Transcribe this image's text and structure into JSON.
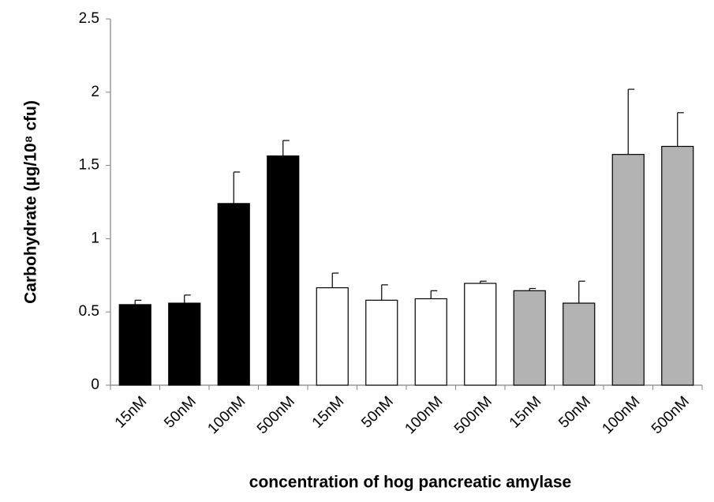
{
  "chart_data": {
    "type": "bar",
    "x_label": "concentration of hog pancreatic amylase",
    "y_label": "Carbohydrate (µg/10⁸ cfu)",
    "categories": [
      "15nM",
      "50nM",
      "100nM",
      "500nM",
      "15nM",
      "50nM",
      "100nM",
      "500nM",
      "15nM",
      "50nM",
      "100nM",
      "500nM"
    ],
    "values": [
      0.55,
      0.56,
      1.24,
      1.565,
      0.665,
      0.58,
      0.59,
      0.695,
      0.645,
      0.56,
      1.575,
      1.63
    ],
    "errors": [
      0.03,
      0.055,
      0.215,
      0.105,
      0.1,
      0.105,
      0.055,
      0.015,
      0.015,
      0.15,
      0.445,
      0.23
    ],
    "colors": [
      "#000000",
      "#000000",
      "#000000",
      "#000000",
      "#ffffff",
      "#ffffff",
      "#ffffff",
      "#ffffff",
      "#b3b3b3",
      "#b3b3b3",
      "#b3b3b3",
      "#b3b3b3"
    ],
    "ylim": [
      0,
      2.5
    ],
    "yticks": [
      0,
      0.5,
      1,
      1.5,
      2,
      2.5
    ],
    "grid": false
  }
}
